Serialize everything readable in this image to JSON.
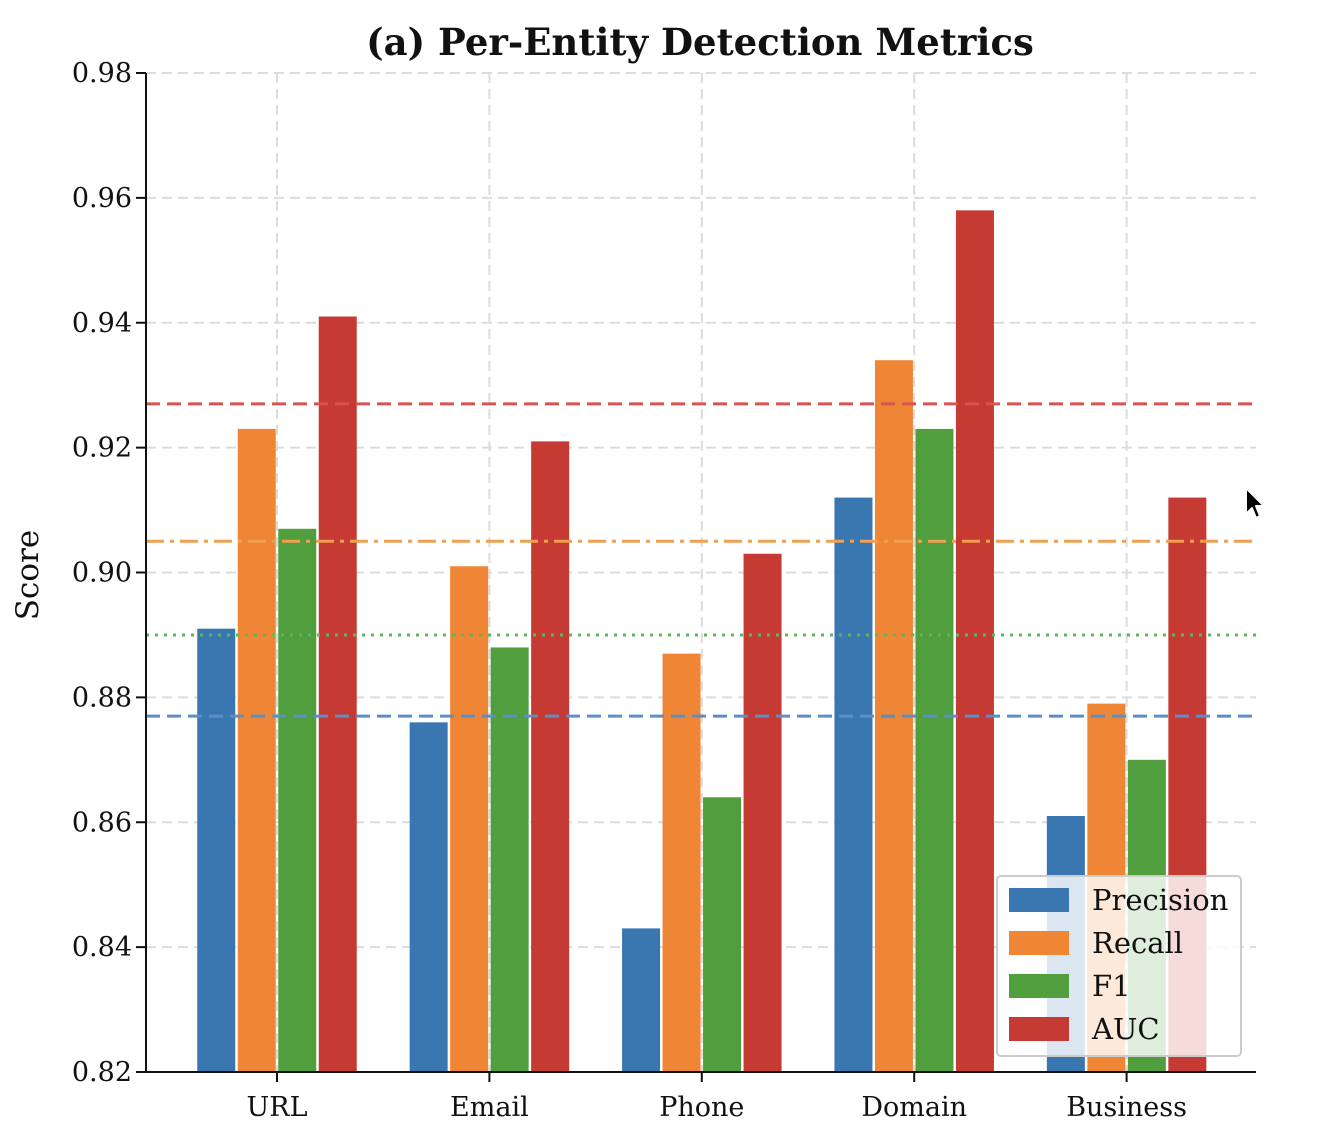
{
  "chart_data": {
    "type": "bar",
    "title": "(a) Per-Entity Detection Metrics",
    "xlabel": "",
    "ylabel": "Score",
    "ylim": [
      0.82,
      0.98
    ],
    "yticks": [
      "0.82",
      "0.84",
      "0.86",
      "0.88",
      "0.90",
      "0.92",
      "0.94",
      "0.96",
      "0.98"
    ],
    "grid": true,
    "legend_position": "lower-right",
    "categories": [
      "URL",
      "Email",
      "Phone",
      "Domain",
      "Business"
    ],
    "series": [
      {
        "name": "Precision",
        "color": "#3a76b0",
        "values": [
          0.891,
          0.876,
          0.843,
          0.912,
          0.861
        ]
      },
      {
        "name": "Recall",
        "color": "#ef8636",
        "values": [
          0.923,
          0.901,
          0.887,
          0.934,
          0.879
        ]
      },
      {
        "name": "F1",
        "color": "#519e3e",
        "values": [
          0.907,
          0.888,
          0.864,
          0.923,
          0.87
        ]
      },
      {
        "name": "AUC",
        "color": "#c53a32",
        "values": [
          0.941,
          0.921,
          0.903,
          0.958,
          0.912
        ]
      }
    ],
    "reference_lines": [
      {
        "series": "AUC",
        "value": 0.927,
        "style": "dashed",
        "color": "#d9534f"
      },
      {
        "series": "Recall",
        "value": 0.905,
        "style": "dashdot",
        "color": "#f0a050"
      },
      {
        "series": "F1",
        "value": 0.89,
        "style": "dotted",
        "color": "#5cb85c"
      },
      {
        "series": "Precision",
        "value": 0.877,
        "style": "dashed",
        "color": "#5b8fc7"
      }
    ]
  },
  "cursor": {
    "icon": "mouse-pointer-icon"
  }
}
